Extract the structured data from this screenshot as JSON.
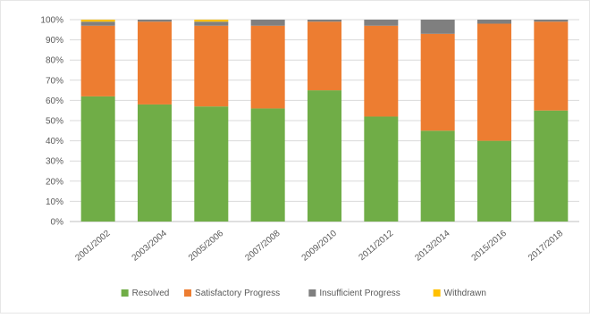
{
  "chart_data": {
    "type": "bar",
    "stacked": true,
    "percent_stacked": true,
    "categories": [
      "2001/2002",
      "2003/2004",
      "2005/2006",
      "2007/2008",
      "2009/2010",
      "2011/2012",
      "2013/2014",
      "2015/2016",
      "2017/2018"
    ],
    "series": [
      {
        "name": "Resolved",
        "color": "#70ad47",
        "values": [
          62,
          58,
          57,
          56,
          65,
          52,
          45,
          40,
          55
        ]
      },
      {
        "name": "Satisfactory Progress",
        "color": "#ed7d31",
        "values": [
          35,
          41,
          40,
          41,
          34,
          45,
          48,
          58,
          44
        ]
      },
      {
        "name": "Insufficient Progress",
        "color": "#7f7f7f",
        "values": [
          2,
          1,
          2,
          3,
          1,
          3,
          7,
          2,
          1
        ]
      },
      {
        "name": "Withdrawn",
        "color": "#ffc000",
        "values": [
          1,
          0,
          1,
          0,
          0,
          0,
          0,
          0,
          0
        ]
      }
    ],
    "ylim": [
      0,
      100
    ],
    "yticks": [
      "0%",
      "10%",
      "20%",
      "30%",
      "40%",
      "50%",
      "60%",
      "70%",
      "80%",
      "90%",
      "100%"
    ],
    "grid": true,
    "legend_position": "bottom"
  }
}
